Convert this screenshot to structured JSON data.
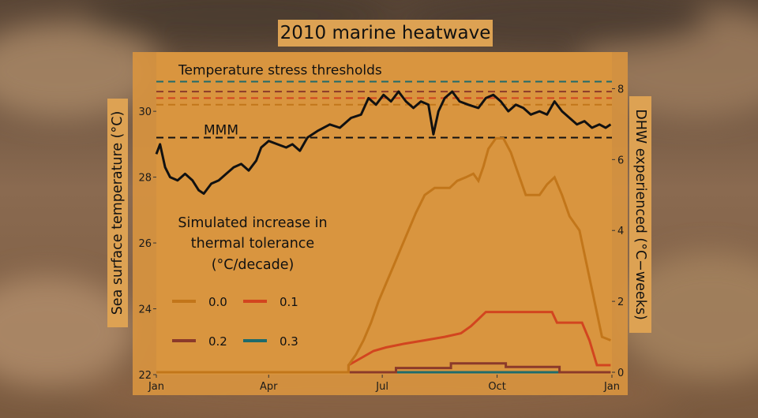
{
  "chart_data": {
    "type": "line",
    "title": "2010 marine heatwave",
    "ylabel": "Sea surface temperature (°C)",
    "y2label": "DHW experienced (°C−weeks)",
    "xlabel": "",
    "x_ticks": [
      "Jan",
      "Apr",
      "Jul",
      "Oct",
      "Jan"
    ],
    "y_ticks": [
      "22",
      "24",
      "26",
      "28",
      "30"
    ],
    "y2_ticks": [
      "0",
      "2",
      "4",
      "6",
      "8"
    ],
    "ylim": [
      22,
      31.8
    ],
    "y2lim": [
      0,
      9.1
    ],
    "grid": false,
    "annotations": {
      "thresholds": "Temperature stress thresholds",
      "mmm": "MMM"
    },
    "mmm_value": 29.2,
    "thresholds": [
      {
        "value": 30.2,
        "color": "#c2761a"
      },
      {
        "value": 30.4,
        "color": "#d2451f"
      },
      {
        "value": 30.6,
        "color": "#8b3a2a"
      },
      {
        "value": 30.9,
        "color": "#1f6b6b"
      }
    ],
    "sst": {
      "color": "#111111",
      "points": [
        [
          "2010-01-01",
          28.7
        ],
        [
          "2010-01-04",
          29.0
        ],
        [
          "2010-01-08",
          28.3
        ],
        [
          "2010-01-12",
          28.0
        ],
        [
          "2010-01-18",
          27.9
        ],
        [
          "2010-01-24",
          28.1
        ],
        [
          "2010-01-30",
          27.9
        ],
        [
          "2010-02-04",
          27.6
        ],
        [
          "2010-02-08",
          27.5
        ],
        [
          "2010-02-14",
          27.8
        ],
        [
          "2010-02-20",
          27.9
        ],
        [
          "2010-02-26",
          28.1
        ],
        [
          "2010-03-04",
          28.3
        ],
        [
          "2010-03-10",
          28.4
        ],
        [
          "2010-03-16",
          28.2
        ],
        [
          "2010-03-22",
          28.5
        ],
        [
          "2010-03-26",
          28.9
        ],
        [
          "2010-04-01",
          29.1
        ],
        [
          "2010-04-08",
          29.0
        ],
        [
          "2010-04-15",
          28.9
        ],
        [
          "2010-04-20",
          29.0
        ],
        [
          "2010-04-26",
          28.8
        ],
        [
          "2010-05-02",
          29.2
        ],
        [
          "2010-05-10",
          29.4
        ],
        [
          "2010-05-20",
          29.6
        ],
        [
          "2010-05-28",
          29.5
        ],
        [
          "2010-06-06",
          29.8
        ],
        [
          "2010-06-14",
          29.9
        ],
        [
          "2010-06-20",
          30.4
        ],
        [
          "2010-06-26",
          30.2
        ],
        [
          "2010-07-02",
          30.5
        ],
        [
          "2010-07-08",
          30.3
        ],
        [
          "2010-07-14",
          30.6
        ],
        [
          "2010-07-20",
          30.3
        ],
        [
          "2010-07-26",
          30.1
        ],
        [
          "2010-08-01",
          30.3
        ],
        [
          "2010-08-07",
          30.2
        ],
        [
          "2010-08-11",
          29.3
        ],
        [
          "2010-08-15",
          30.0
        ],
        [
          "2010-08-20",
          30.4
        ],
        [
          "2010-08-26",
          30.6
        ],
        [
          "2010-09-01",
          30.3
        ],
        [
          "2010-09-08",
          30.2
        ],
        [
          "2010-09-16",
          30.1
        ],
        [
          "2010-09-22",
          30.4
        ],
        [
          "2010-09-28",
          30.5
        ],
        [
          "2010-10-04",
          30.3
        ],
        [
          "2010-10-10",
          30.0
        ],
        [
          "2010-10-16",
          30.2
        ],
        [
          "2010-10-22",
          30.1
        ],
        [
          "2010-10-28",
          29.9
        ],
        [
          "2010-11-04",
          30.0
        ],
        [
          "2010-11-10",
          29.9
        ],
        [
          "2010-11-16",
          30.3
        ],
        [
          "2010-11-22",
          30.0
        ],
        [
          "2010-11-28",
          29.8
        ],
        [
          "2010-12-04",
          29.6
        ],
        [
          "2010-12-10",
          29.7
        ],
        [
          "2010-12-16",
          29.5
        ],
        [
          "2010-12-22",
          29.6
        ],
        [
          "2010-12-27",
          29.5
        ],
        [
          "2010-12-31",
          29.6
        ]
      ]
    },
    "series": [
      {
        "name": "0.0",
        "color": "#c2761a",
        "axis": "right",
        "points": [
          [
            "2010-01-01",
            0.0
          ],
          [
            "2010-06-04",
            0.0
          ],
          [
            "2010-06-04",
            0.2
          ],
          [
            "2010-06-10",
            0.5
          ],
          [
            "2010-06-16",
            0.9
          ],
          [
            "2010-06-22",
            1.4
          ],
          [
            "2010-06-28",
            2.0
          ],
          [
            "2010-07-04",
            2.5
          ],
          [
            "2010-07-10",
            3.0
          ],
          [
            "2010-07-16",
            3.5
          ],
          [
            "2010-07-22",
            4.0
          ],
          [
            "2010-07-28",
            4.5
          ],
          [
            "2010-08-04",
            5.0
          ],
          [
            "2010-08-12",
            5.2
          ],
          [
            "2010-08-24",
            5.2
          ],
          [
            "2010-08-30",
            5.4
          ],
          [
            "2010-09-06",
            5.5
          ],
          [
            "2010-09-12",
            5.6
          ],
          [
            "2010-09-16",
            5.4
          ],
          [
            "2010-09-20",
            5.8
          ],
          [
            "2010-09-24",
            6.3
          ],
          [
            "2010-09-30",
            6.6
          ],
          [
            "2010-10-06",
            6.6
          ],
          [
            "2010-10-12",
            6.2
          ],
          [
            "2010-10-18",
            5.6
          ],
          [
            "2010-10-24",
            5.0
          ],
          [
            "2010-11-04",
            5.0
          ],
          [
            "2010-11-10",
            5.3
          ],
          [
            "2010-11-16",
            5.5
          ],
          [
            "2010-11-22",
            5.0
          ],
          [
            "2010-11-28",
            4.4
          ],
          [
            "2010-12-06",
            4.0
          ],
          [
            "2010-12-12",
            3.0
          ],
          [
            "2010-12-18",
            2.0
          ],
          [
            "2010-12-24",
            1.0
          ],
          [
            "2010-12-31",
            0.9
          ]
        ]
      },
      {
        "name": "0.1",
        "color": "#d2451f",
        "axis": "right",
        "points": [
          [
            "2010-01-01",
            0.0
          ],
          [
            "2010-06-04",
            0.0
          ],
          [
            "2010-06-04",
            0.2
          ],
          [
            "2010-06-14",
            0.4
          ],
          [
            "2010-06-24",
            0.6
          ],
          [
            "2010-07-04",
            0.7
          ],
          [
            "2010-07-18",
            0.8
          ],
          [
            "2010-08-04",
            0.9
          ],
          [
            "2010-08-20",
            1.0
          ],
          [
            "2010-09-02",
            1.1
          ],
          [
            "2010-09-10",
            1.3
          ],
          [
            "2010-09-16",
            1.5
          ],
          [
            "2010-09-22",
            1.7
          ],
          [
            "2010-11-14",
            1.7
          ],
          [
            "2010-11-18",
            1.4
          ],
          [
            "2010-12-08",
            1.4
          ],
          [
            "2010-12-14",
            0.9
          ],
          [
            "2010-12-20",
            0.2
          ],
          [
            "2010-12-31",
            0.2
          ]
        ]
      },
      {
        "name": "0.2",
        "color": "#8b3a2a",
        "axis": "right",
        "points": [
          [
            "2010-01-01",
            0.0
          ],
          [
            "2010-07-12",
            0.0
          ],
          [
            "2010-07-12",
            0.12
          ],
          [
            "2010-08-25",
            0.12
          ],
          [
            "2010-08-25",
            0.25
          ],
          [
            "2010-10-08",
            0.25
          ],
          [
            "2010-10-08",
            0.15
          ],
          [
            "2010-11-20",
            0.15
          ],
          [
            "2010-11-20",
            0.0
          ],
          [
            "2010-12-31",
            0.0
          ]
        ]
      },
      {
        "name": "0.3",
        "color": "#1f6b6b",
        "axis": "right",
        "points": [
          [
            "2010-01-01",
            0.0
          ],
          [
            "2010-12-31",
            0.0
          ]
        ]
      }
    ],
    "legend": {
      "title_lines": [
        "Simulated increase in",
        "thermal tolerance",
        "(°C/decade)"
      ],
      "placement": "center-left"
    }
  },
  "colors": {
    "panel": "#d9953f",
    "label_box": "#dda253"
  }
}
